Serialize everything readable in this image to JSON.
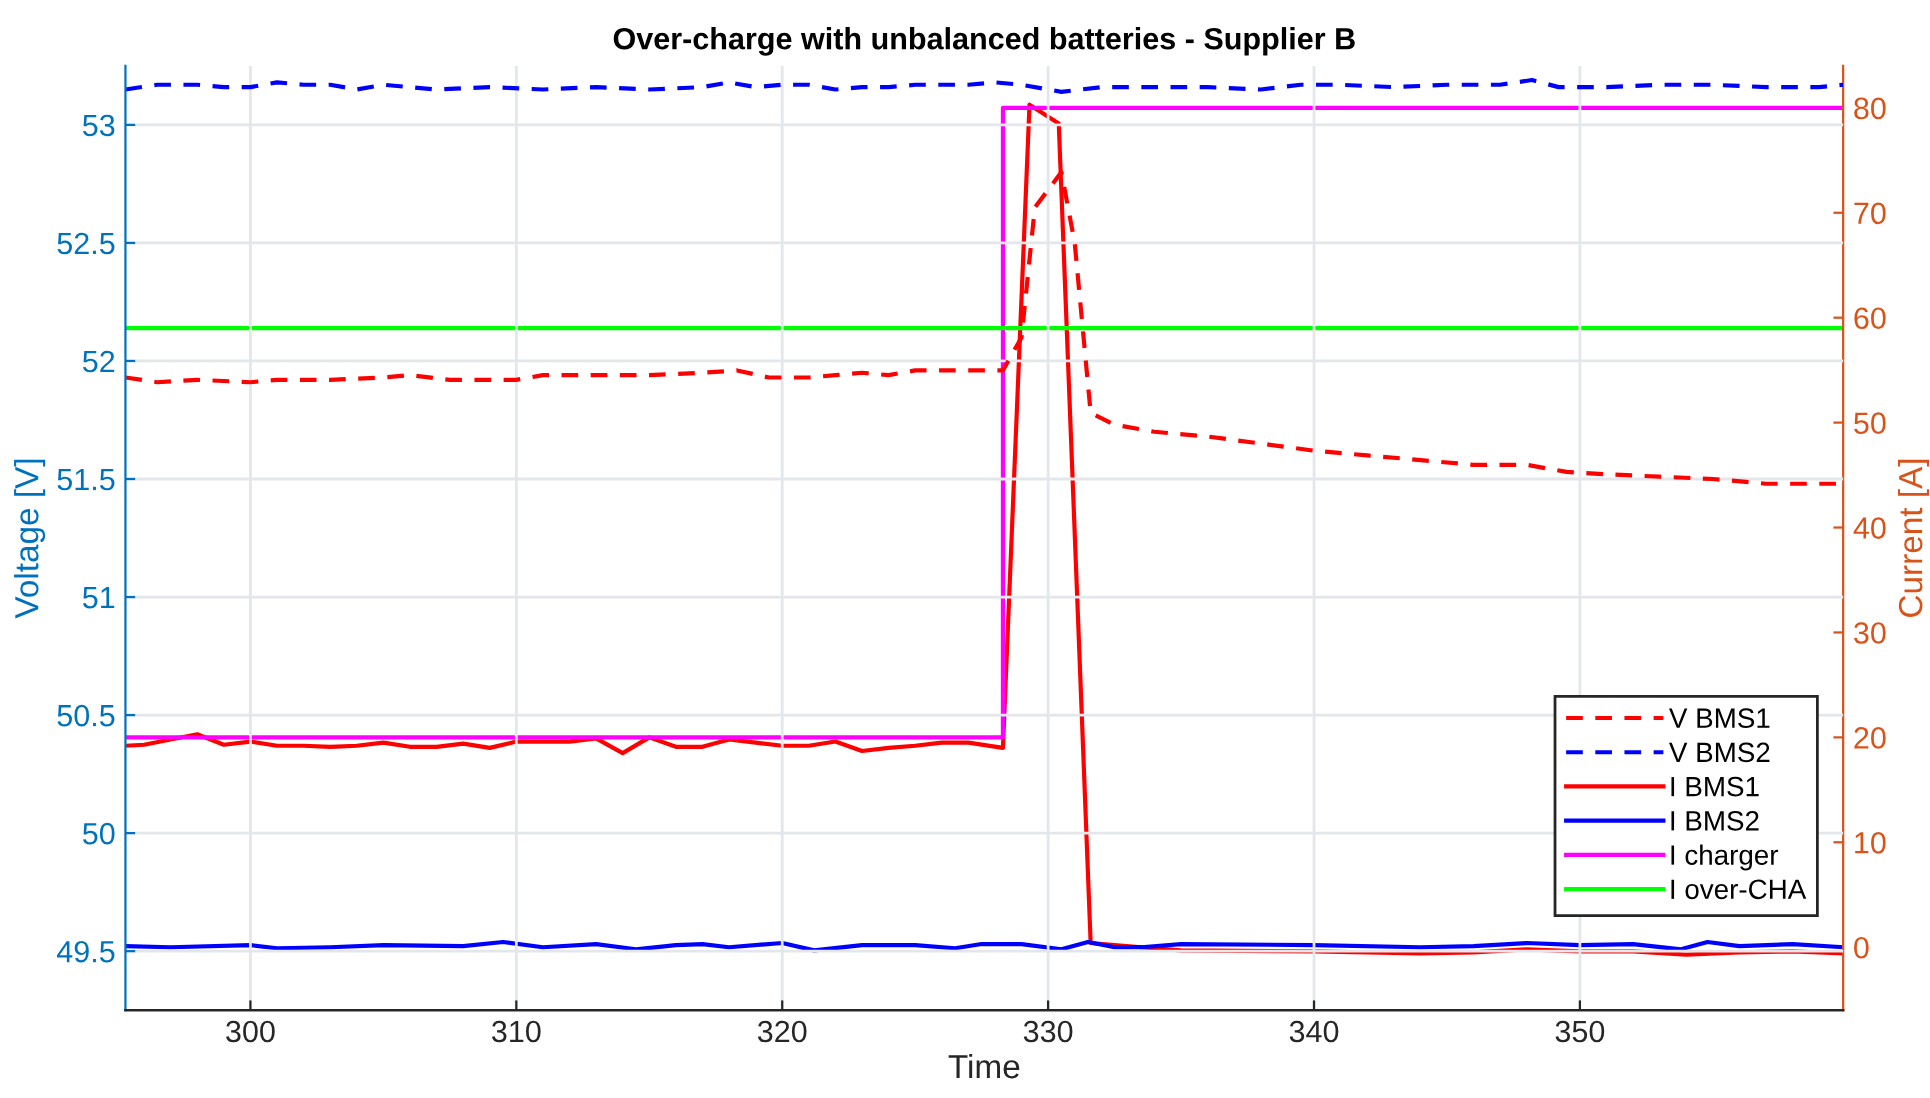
{
  "chart_data": {
    "type": "line",
    "title": "Over-charge with unbalanced batteries - Supplier B",
    "xlabel": "Time",
    "ylabel": "Voltage [V]",
    "y2label": "Current [A]",
    "xlim": [
      295.3,
      359.9
    ],
    "xticks": [
      300,
      310,
      320,
      330,
      340,
      350
    ],
    "ylim": [
      49.25,
      53.25
    ],
    "yticks": [
      49.5,
      50,
      50.5,
      51,
      51.5,
      52,
      52.5,
      53
    ],
    "y2lim": [
      -6,
      84
    ],
    "y2ticks": [
      0,
      10,
      20,
      30,
      40,
      50,
      60,
      70,
      80
    ],
    "grid": true,
    "legend": "bottom right",
    "marker": "none",
    "series": [
      {
        "name": "V BMS1",
        "color": "#ff0000",
        "line_style": "dashed",
        "x": [
          295.3,
          296.5,
          298,
          300,
          301,
          303,
          305,
          306,
          307.5,
          309,
          310,
          311,
          313,
          315,
          317,
          318.3,
          319.5,
          321,
          322,
          323,
          324,
          325,
          326,
          328.3,
          329,
          329.5,
          330.5,
          331,
          331.6,
          332.5,
          334,
          336,
          338,
          340,
          342,
          344,
          346,
          348,
          349.5,
          351,
          353,
          355,
          357,
          359.9
        ],
        "values": [
          51.93,
          51.91,
          51.92,
          51.91,
          51.92,
          51.92,
          51.93,
          51.94,
          51.92,
          51.92,
          51.92,
          51.94,
          51.94,
          51.94,
          51.95,
          51.96,
          51.93,
          51.93,
          51.94,
          51.95,
          51.94,
          51.96,
          51.96,
          51.96,
          52.1,
          52.65,
          52.8,
          52.5,
          51.78,
          51.73,
          51.7,
          51.68,
          51.65,
          51.62,
          51.6,
          51.58,
          51.56,
          51.56,
          51.53,
          51.52,
          51.51,
          51.5,
          51.48,
          51.48
        ]
      },
      {
        "name": "V BMS2",
        "color": "#0000ff",
        "line_style": "dashed",
        "x": [
          295.3,
          296.5,
          298,
          299,
          300,
          301,
          302,
          303,
          304,
          305,
          306,
          307,
          309,
          311,
          313,
          315,
          317,
          318,
          319,
          320,
          321,
          322,
          323,
          324,
          325,
          326,
          327,
          328,
          329,
          330.5,
          332,
          334,
          336,
          338,
          339.5,
          341,
          343,
          345,
          347,
          348.2,
          349.2,
          351,
          353,
          355,
          357,
          359,
          359.9
        ],
        "values": [
          53.15,
          53.17,
          53.17,
          53.16,
          53.16,
          53.18,
          53.17,
          53.17,
          53.15,
          53.17,
          53.16,
          53.15,
          53.16,
          53.15,
          53.16,
          53.15,
          53.16,
          53.18,
          53.16,
          53.17,
          53.17,
          53.15,
          53.16,
          53.16,
          53.17,
          53.17,
          53.17,
          53.18,
          53.17,
          53.14,
          53.16,
          53.16,
          53.16,
          53.15,
          53.17,
          53.17,
          53.16,
          53.17,
          53.17,
          53.19,
          53.16,
          53.16,
          53.17,
          53.17,
          53.16,
          53.16,
          53.17
        ]
      },
      {
        "name": "I BMS1",
        "color": "#ff0000",
        "line_style": "solid",
        "axis": "y2",
        "x": [
          295.3,
          296,
          297,
          298,
          299,
          300,
          301,
          302,
          303,
          304,
          305,
          306,
          307,
          308,
          309,
          310,
          311,
          312,
          313,
          314,
          315,
          316,
          317,
          318,
          319,
          320,
          321,
          322,
          323,
          324,
          325,
          326,
          327,
          328.3,
          329.3,
          330.4,
          331.6,
          332.5,
          333.5,
          335,
          340,
          344,
          346,
          348,
          350,
          352,
          354,
          356,
          358,
          359.9
        ],
        "values": [
          19.2,
          19.3,
          19.8,
          20.3,
          19.3,
          19.6,
          19.2,
          19.2,
          19.1,
          19.2,
          19.5,
          19.1,
          19.1,
          19.4,
          19.0,
          19.6,
          19.6,
          19.6,
          19.9,
          18.5,
          20.0,
          19.1,
          19.1,
          19.8,
          19.5,
          19.2,
          19.2,
          19.6,
          18.7,
          19.0,
          19.2,
          19.5,
          19.5,
          19.0,
          80.3,
          78.5,
          0.4,
          0.2,
          0,
          -0.3,
          -0.4,
          -0.6,
          -0.5,
          -0.2,
          -0.4,
          -0.4,
          -0.7,
          -0.5,
          -0.4,
          -0.6
        ]
      },
      {
        "name": "I BMS2",
        "color": "#0000ff",
        "line_style": "solid",
        "axis": "y2",
        "x": [
          295.3,
          297,
          300,
          301,
          303,
          305,
          308,
          309.5,
          311,
          313,
          314.5,
          316,
          317,
          318,
          320,
          321.2,
          323,
          325,
          326.5,
          327.5,
          329,
          330.5,
          331.5,
          332.5,
          333.5,
          335,
          340,
          344,
          346,
          348,
          350,
          352,
          353.8,
          354.8,
          356,
          358,
          359.9
        ],
        "values": [
          0.1,
          0.0,
          0.2,
          -0.1,
          0,
          0.2,
          0.1,
          0.5,
          0,
          0.3,
          -0.2,
          0.2,
          0.3,
          0,
          0.4,
          -0.3,
          0.2,
          0.2,
          -0.1,
          0.3,
          0.3,
          -0.2,
          0.5,
          0,
          0,
          0.3,
          0.2,
          0,
          0.1,
          0.4,
          0.2,
          0.3,
          -0.2,
          0.5,
          0.1,
          0.3,
          0
        ]
      },
      {
        "name": "I charger",
        "color": "#ff00ff",
        "line_style": "solid",
        "axis": "y2",
        "x": [
          295.3,
          328.3,
          328.3,
          359.9
        ],
        "values": [
          20,
          20,
          80,
          80
        ]
      },
      {
        "name": "I over-CHA",
        "color": "#00ff00",
        "line_style": "solid",
        "axis": "y2",
        "x": [
          295.3,
          359.9
        ],
        "values": [
          59,
          59
        ]
      }
    ]
  }
}
